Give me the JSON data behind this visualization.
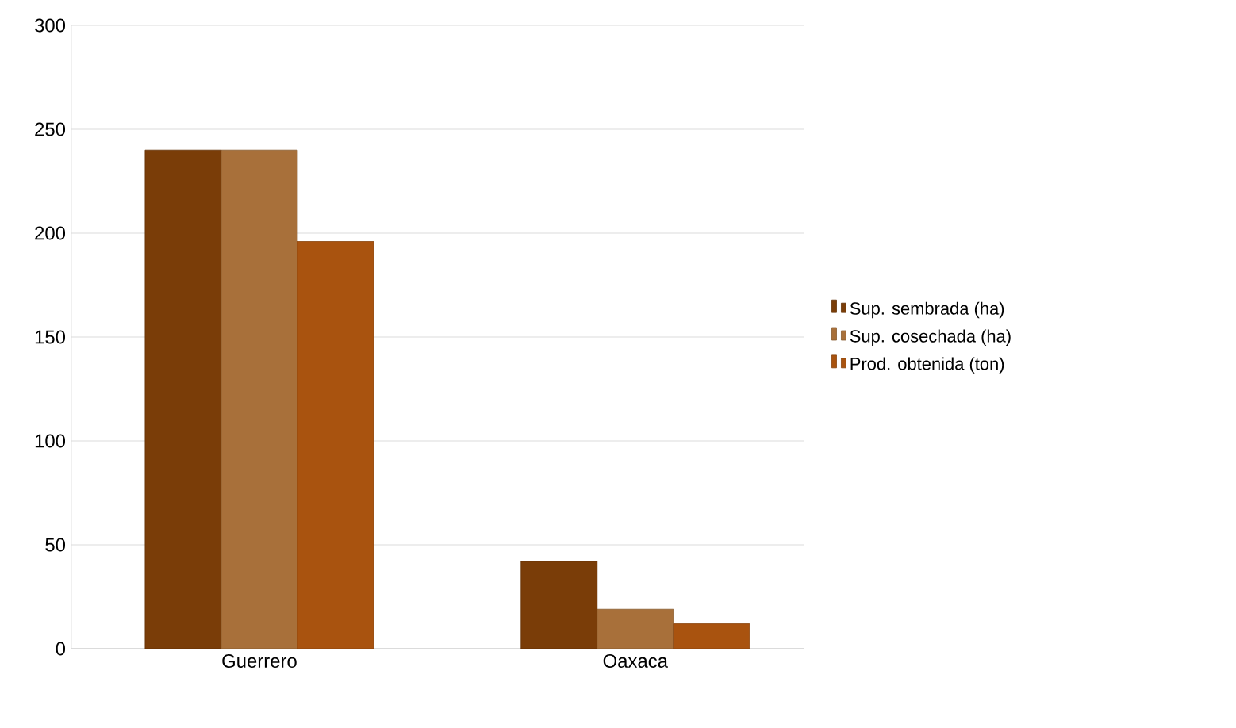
{
  "chart_data": {
    "type": "bar",
    "categories": [
      "Guerrero",
      "Oaxaca"
    ],
    "series": [
      {
        "name": "Sup. sembrada (ha)",
        "color": "#7a3d08",
        "values": [
          240,
          42
        ]
      },
      {
        "name": "Sup. cosechada (ha)",
        "color": "#a8703a",
        "values": [
          240,
          19
        ]
      },
      {
        "name": "Prod. obtenida (ton)",
        "color": "#a9530f",
        "values": [
          196,
          12
        ]
      }
    ],
    "ylim": [
      0,
      300
    ],
    "yticks": [
      0,
      50,
      100,
      150,
      200,
      250,
      300
    ],
    "grid": "y",
    "legend": "right"
  }
}
